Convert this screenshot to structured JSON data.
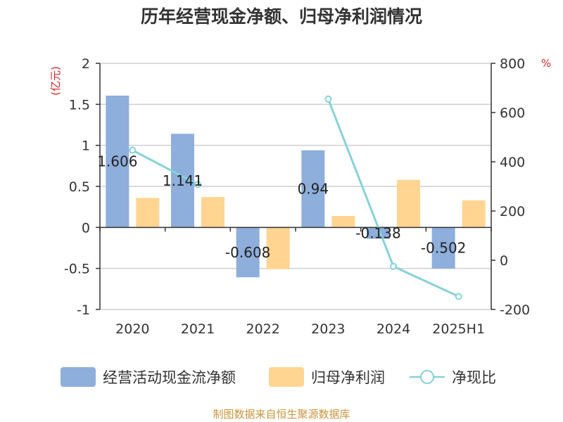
{
  "chart_data": {
    "type": "bar",
    "title": "历年经营现金净额、归母净利润情况",
    "categories": [
      "2020",
      "2021",
      "2022",
      "2023",
      "2024",
      "2025H1"
    ],
    "series": [
      {
        "name": "经营活动现金流净额",
        "type": "bar",
        "axis": "left",
        "color": "#8eaedc",
        "values": [
          1.606,
          1.141,
          -0.608,
          0.94,
          -0.138,
          -0.502
        ],
        "labels": [
          "1.606",
          "1.141",
          "-0.608",
          "0.94",
          "-0.138",
          "-0.502"
        ]
      },
      {
        "name": "归母净利润",
        "type": "bar",
        "axis": "left",
        "color": "#ffd591",
        "values": [
          0.36,
          0.37,
          -0.51,
          0.14,
          0.58,
          0.33
        ]
      },
      {
        "name": "净现比",
        "type": "line",
        "axis": "right",
        "color": "#86d2d8",
        "values": [
          447,
          308,
          null,
          655,
          -25,
          -147
        ]
      }
    ],
    "left_axis": {
      "unit": "(亿元)",
      "ylim": [
        -1,
        2
      ],
      "ticks": [
        "-1",
        "-0.5",
        "0",
        "0.5",
        "1",
        "1.5",
        "2"
      ]
    },
    "right_axis": {
      "unit": "%",
      "ylim": [
        -200,
        800
      ],
      "ticks": [
        "-200",
        "0",
        "200",
        "400",
        "600",
        "800"
      ]
    },
    "grid": true,
    "legend_position": "bottom"
  },
  "source": "制图数据来自恒生聚源数据库"
}
